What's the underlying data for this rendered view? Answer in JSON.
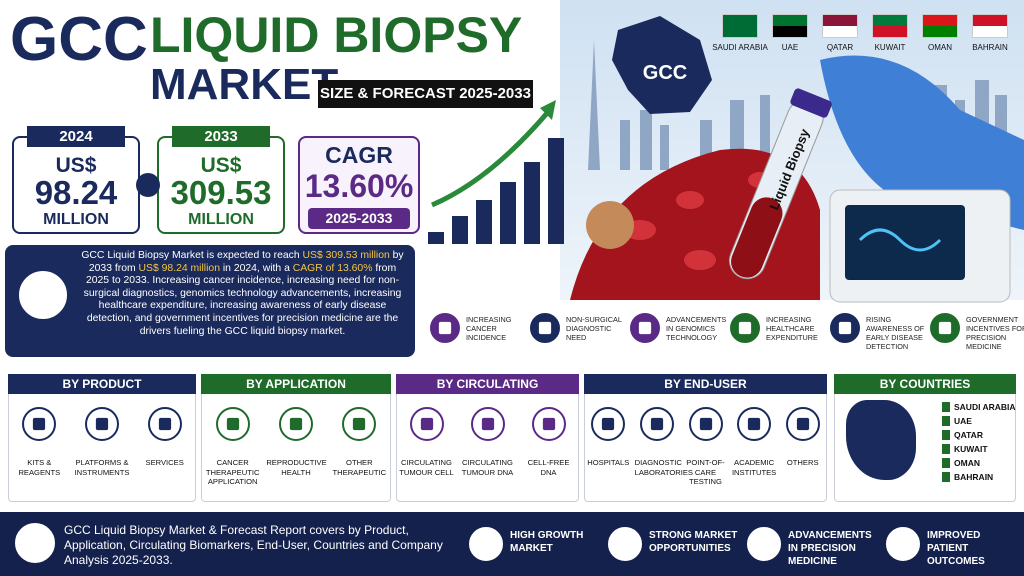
{
  "header": {
    "title_line1": "GCC",
    "title_line2": "LIQUID BIOPSY",
    "title_line3": "MARKET",
    "subtitle": "SIZE & FORECAST 2025-2033"
  },
  "countries": [
    "SAUDI ARABIA",
    "UAE",
    "QATAR",
    "KUWAIT",
    "OMAN",
    "BAHRAIN"
  ],
  "map_label": "GCC",
  "stats": [
    {
      "year": "2024",
      "currency": "US$",
      "value": "98.24",
      "unit": "MILLION"
    },
    {
      "year": "2033",
      "currency": "US$",
      "value": "309.53",
      "unit": "MILLION"
    }
  ],
  "cagr": {
    "label": "CAGR",
    "value": "13.60%",
    "period": "2025-2033"
  },
  "image_label": "Liquid Biopsy",
  "summary": [
    "GCC Liquid Biopsy Market is expected to reach ",
    "US$ 309.53 million",
    " by 2033 from ",
    "US$ 98.24 million",
    " in 2024, with a ",
    "CAGR of 13.60%",
    " from 2025 to 2033. Increasing cancer incidence, increasing need for non-surgical diagnostics, genomics technology advancements, increasing healthcare expenditure, increasing awareness of early disease detection, and government incentives for precision medicine are the drivers fueling the GCC liquid biopsy market."
  ],
  "drivers": [
    "INCREASING CANCER INCIDENCE",
    "NON-SURGICAL DIAGNOSTIC NEED",
    "ADVANCEMENTS IN GENOMICS TECHNOLOGY",
    "INCREASING HEALTHCARE EXPENDITURE",
    "RISING AWARENESS OF EARLY DISEASE DETECTION",
    "GOVERNMENT INCENTIVES FOR PRECISION MEDICINE"
  ],
  "segments": [
    {
      "title": "BY PRODUCT",
      "items": [
        "KITS & REAGENTS",
        "PLATFORMS & INSTRUMENTS",
        "SERVICES"
      ]
    },
    {
      "title": "BY APPLICATION",
      "items": [
        "CANCER THERAPEUTIC APPLICATION",
        "REPRODUCTIVE HEALTH",
        "OTHER THERAPEUTIC"
      ]
    },
    {
      "title": "BY CIRCULATING BIOMARKERS",
      "items": [
        "CIRCULATING TUMOUR CELL",
        "CIRCULATING TUMOUR DNA",
        "CELL-FREE DNA"
      ]
    },
    {
      "title": "BY END-USER",
      "items": [
        "HOSPITALS",
        "DIAGNOSTIC LABORATORIES",
        "POINT-OF-CARE TESTING",
        "ACADEMIC INSTITUTES",
        "OTHERS"
      ]
    },
    {
      "title": "BY COUNTRIES",
      "items": [
        "SAUDI ARABIA",
        "UAE",
        "QATAR",
        "KUWAIT",
        "OMAN",
        "BAHRAIN"
      ]
    }
  ],
  "footer": {
    "description": "GCC Liquid Biopsy Market & Forecast Report covers by Product, Application, Circulating Biomarkers, End-User, Countries and Company Analysis 2025-2033.",
    "highlights": [
      "HIGH GROWTH MARKET",
      "STRONG MARKET OPPORTUNITIES",
      "ADVANCEMENTS IN PRECISION MEDICINE",
      "IMPROVED PATIENT OUTCOMES"
    ]
  }
}
